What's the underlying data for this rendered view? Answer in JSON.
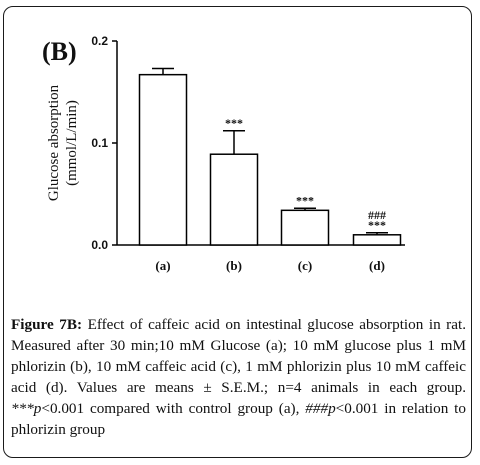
{
  "chart_data": {
    "type": "bar",
    "panel_label": "(B)",
    "ylabel_line1": "Glucose absorption",
    "ylabel_line2": "(mmol/L/min)",
    "ylim": [
      0,
      0.2
    ],
    "yticks": [
      "0.0",
      "0.1",
      "0.2"
    ],
    "ytick_values": [
      0.0,
      0.1,
      0.2
    ],
    "categories": [
      "(a)",
      "(b)",
      "(c)",
      "(d)"
    ],
    "values": [
      0.167,
      0.089,
      0.034,
      0.01
    ],
    "errors": [
      0.006,
      0.023,
      0.002,
      0.002
    ],
    "annotations": [
      [],
      [
        "***"
      ],
      [
        "***"
      ],
      [
        "###",
        "***"
      ]
    ],
    "bar_fill": "#ffffff",
    "bar_stroke": "#000000",
    "grid": false
  },
  "caption": {
    "lead": "Figure 7B:",
    "text1": " Effect of caffeic acid on intestinal glucose absorption in rat. Measured after 30 min;10 mM Glucose (a); 10 mM glucose plus 1 mM phlorizin (b), 10 mM caffeic acid (c), 1 mM phlorizin plus 10 mM caffeic acid (d). Values are means ± S.E.M.; n=4 animals in each group. ",
    "italic1": "***p",
    "text2": "<0.001 compared with control group (a), ",
    "italic2": "###p",
    "text3": "<0.001 in relation to phlorizin group"
  }
}
